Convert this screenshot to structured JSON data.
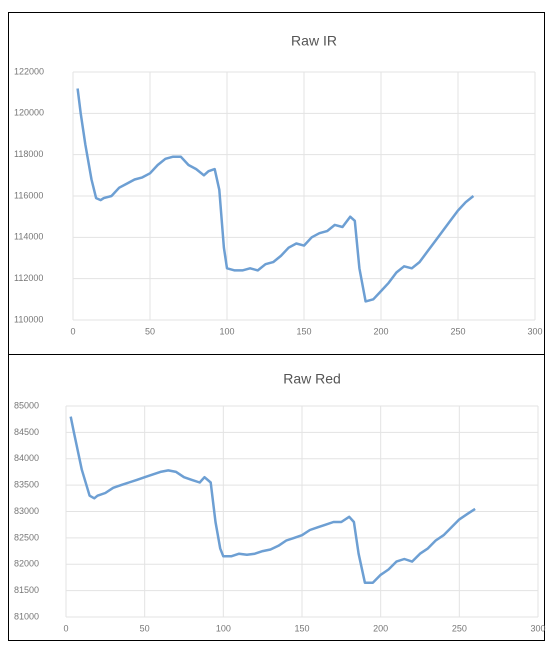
{
  "chart_data": [
    {
      "type": "line",
      "title": "Raw IR",
      "color": "#6d9fd3",
      "grid": true,
      "x": [
        3,
        5,
        8,
        12,
        15,
        18,
        20,
        25,
        30,
        35,
        40,
        45,
        50,
        55,
        60,
        65,
        70,
        75,
        80,
        85,
        88,
        92,
        95,
        98,
        100,
        105,
        110,
        115,
        120,
        125,
        130,
        135,
        140,
        145,
        150,
        155,
        160,
        165,
        170,
        175,
        180,
        183,
        186,
        190,
        195,
        200,
        205,
        210,
        215,
        220,
        225,
        230,
        235,
        240,
        245,
        250,
        255,
        260
      ],
      "values": [
        121200,
        120000,
        118500,
        116800,
        115900,
        115800,
        115900,
        116000,
        116400,
        116600,
        116800,
        116900,
        117100,
        117500,
        117800,
        117900,
        117900,
        117500,
        117300,
        117000,
        117200,
        117300,
        116300,
        113500,
        112500,
        112400,
        112400,
        112500,
        112400,
        112700,
        112800,
        113100,
        113500,
        113700,
        113600,
        114000,
        114200,
        114300,
        114600,
        114500,
        115000,
        114800,
        112500,
        110900,
        111000,
        111400,
        111800,
        112300,
        112600,
        112500,
        112800,
        113300,
        113800,
        114300,
        114800,
        115300,
        115700,
        116000
      ],
      "xlim": [
        0,
        300
      ],
      "xticks": [
        0,
        50,
        100,
        150,
        200,
        250,
        300
      ],
      "ylim": [
        110000,
        122000
      ],
      "yticks": [
        110000,
        112000,
        114000,
        116000,
        118000,
        120000,
        122000
      ]
    },
    {
      "type": "line",
      "title": "Raw Red",
      "color": "#6d9fd3",
      "grid": true,
      "x": [
        3,
        5,
        10,
        15,
        18,
        20,
        25,
        30,
        35,
        40,
        45,
        50,
        55,
        60,
        65,
        70,
        75,
        80,
        85,
        88,
        92,
        95,
        98,
        100,
        105,
        110,
        115,
        120,
        125,
        130,
        135,
        140,
        145,
        150,
        155,
        160,
        165,
        170,
        175,
        180,
        183,
        186,
        190,
        195,
        200,
        205,
        210,
        215,
        220,
        225,
        230,
        235,
        240,
        245,
        250,
        255,
        260
      ],
      "values": [
        84800,
        84500,
        83800,
        83300,
        83250,
        83300,
        83350,
        83450,
        83500,
        83550,
        83600,
        83650,
        83700,
        83750,
        83780,
        83750,
        83650,
        83600,
        83550,
        83650,
        83550,
        82800,
        82300,
        82150,
        82150,
        82200,
        82180,
        82200,
        82250,
        82280,
        82350,
        82450,
        82500,
        82550,
        82650,
        82700,
        82750,
        82800,
        82800,
        82900,
        82800,
        82200,
        81650,
        81650,
        81800,
        81900,
        82050,
        82100,
        82050,
        82200,
        82300,
        82450,
        82550,
        82700,
        82850,
        82950,
        83050
      ],
      "xlim": [
        0,
        300
      ],
      "xticks": [
        0,
        50,
        100,
        150,
        200,
        250,
        300
      ],
      "ylim": [
        81000,
        85000
      ],
      "yticks": [
        81000,
        81500,
        82000,
        82500,
        83000,
        83500,
        84000,
        84500,
        85000
      ]
    }
  ]
}
